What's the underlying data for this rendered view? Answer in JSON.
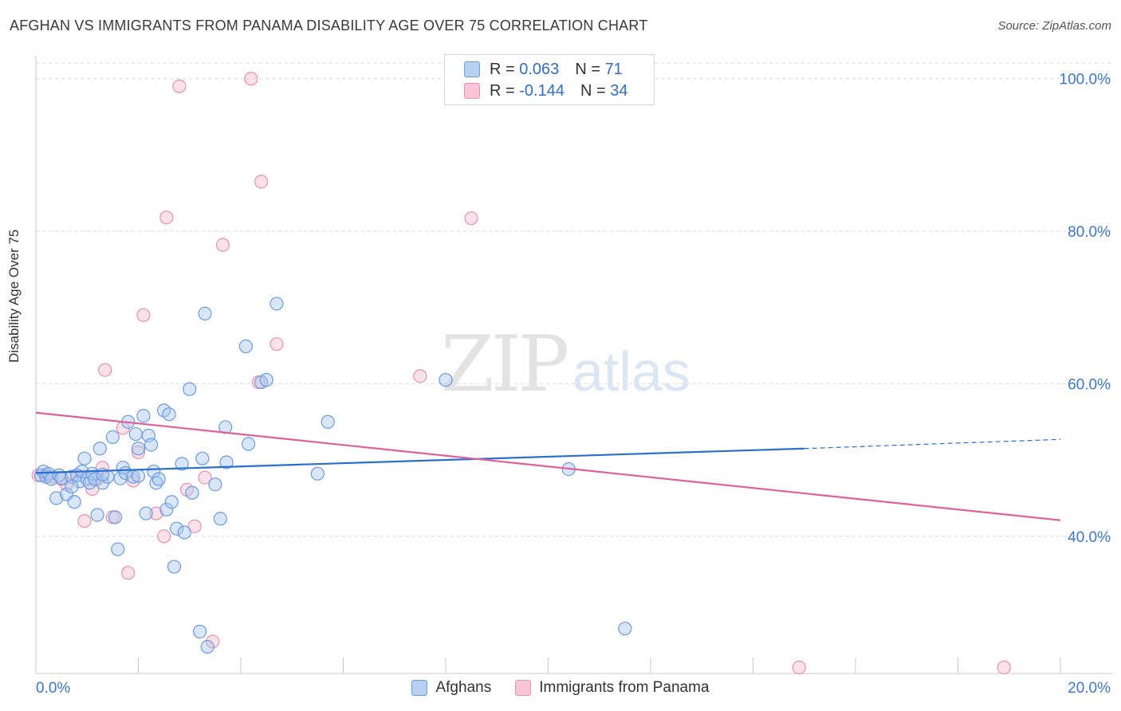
{
  "title": "AFGHAN VS IMMIGRANTS FROM PANAMA DISABILITY AGE OVER 75 CORRELATION CHART",
  "source": "Source: ZipAtlas.com",
  "watermark": {
    "zip": "ZIP",
    "atlas": "atlas"
  },
  "legend": {
    "rows": [
      {
        "r_label": "R =",
        "r_value": "0.063",
        "n_label": "N =",
        "n_value": "71"
      },
      {
        "r_label": "R =",
        "r_value": "-0.144",
        "n_label": "N =",
        "n_value": "34"
      }
    ]
  },
  "bottom_legend": {
    "afghans": "Afghans",
    "panama": "Immigrants from Panama"
  },
  "colors": {
    "afghan_fill": "#a9c8ef",
    "afghan_stroke": "#6b9be0",
    "afghan_line": "#2a6fd0",
    "panama_fill": "#f6bfd1",
    "panama_stroke": "#ea8fae",
    "panama_line": "#e0609a",
    "axis_text": "#3b78cf",
    "grid": "#d9d9d9"
  },
  "chart_data": {
    "type": "scatter",
    "title": "AFGHAN VS IMMIGRANTS FROM PANAMA DISABILITY AGE OVER 75 CORRELATION CHART",
    "xlabel": "",
    "ylabel": "Disability Age Over 75",
    "xlim": [
      0,
      20
    ],
    "ylim": [
      22,
      103
    ],
    "x_tick_labels": [
      "0.0%",
      "20.0%"
    ],
    "y_ticks": [
      40,
      60,
      80,
      100
    ],
    "y_tick_labels": [
      "40.0%",
      "60.0%",
      "80.0%",
      "100.0%"
    ],
    "grid": true,
    "legend_position": "top-center",
    "series": [
      {
        "name": "Afghans",
        "r": 0.063,
        "n": 71,
        "trend": {
          "x0": 0,
          "y0": 48.3,
          "x1": 15,
          "y1": 51.5,
          "dashed_to_x": 20,
          "dashed_to_y": 52.7
        },
        "points": [
          [
            0.1,
            48.0
          ],
          [
            0.15,
            48.5
          ],
          [
            0.2,
            47.8
          ],
          [
            0.25,
            48.2
          ],
          [
            0.3,
            47.5
          ],
          [
            0.4,
            45.0
          ],
          [
            0.45,
            48.0
          ],
          [
            0.5,
            47.6
          ],
          [
            0.6,
            45.5
          ],
          [
            0.7,
            47.8
          ],
          [
            0.75,
            44.5
          ],
          [
            0.8,
            48.0
          ],
          [
            0.85,
            47.2
          ],
          [
            0.9,
            48.5
          ],
          [
            0.95,
            50.2
          ],
          [
            1.0,
            47.5
          ],
          [
            1.05,
            47.0
          ],
          [
            1.1,
            48.2
          ],
          [
            1.15,
            47.5
          ],
          [
            1.2,
            42.8
          ],
          [
            1.25,
            51.5
          ],
          [
            1.3,
            47.0
          ],
          [
            1.4,
            47.8
          ],
          [
            1.5,
            53.0
          ],
          [
            1.55,
            42.5
          ],
          [
            1.6,
            38.3
          ],
          [
            1.65,
            47.6
          ],
          [
            1.7,
            49.0
          ],
          [
            1.75,
            48.3
          ],
          [
            1.8,
            55.0
          ],
          [
            1.9,
            47.8
          ],
          [
            1.95,
            53.4
          ],
          [
            2.0,
            51.5
          ],
          [
            2.1,
            55.8
          ],
          [
            2.15,
            43.0
          ],
          [
            2.2,
            53.2
          ],
          [
            2.25,
            52.0
          ],
          [
            2.3,
            48.5
          ],
          [
            2.35,
            47.0
          ],
          [
            2.4,
            47.5
          ],
          [
            2.5,
            56.5
          ],
          [
            2.55,
            43.5
          ],
          [
            2.6,
            56.0
          ],
          [
            2.65,
            44.5
          ],
          [
            2.7,
            36.0
          ],
          [
            2.75,
            41.0
          ],
          [
            2.85,
            49.5
          ],
          [
            2.9,
            40.5
          ],
          [
            3.0,
            59.3
          ],
          [
            3.05,
            45.7
          ],
          [
            3.2,
            27.5
          ],
          [
            3.25,
            50.2
          ],
          [
            3.3,
            69.2
          ],
          [
            3.35,
            25.5
          ],
          [
            3.5,
            46.8
          ],
          [
            3.6,
            42.3
          ],
          [
            3.7,
            54.3
          ],
          [
            3.72,
            49.7
          ],
          [
            4.1,
            64.9
          ],
          [
            4.15,
            52.1
          ],
          [
            4.4,
            60.2
          ],
          [
            4.5,
            60.5
          ],
          [
            4.7,
            70.5
          ],
          [
            5.5,
            48.2
          ],
          [
            5.7,
            55.0
          ],
          [
            8.0,
            60.5
          ],
          [
            10.4,
            48.8
          ],
          [
            11.5,
            27.9
          ],
          [
            2.0,
            47.9
          ],
          [
            1.3,
            48.1
          ],
          [
            0.7,
            46.5
          ]
        ]
      },
      {
        "name": "Immigrants from Panama",
        "r": -0.144,
        "n": 34,
        "trend": {
          "x0": 0,
          "y0": 56.2,
          "x1": 20,
          "y1": 42.1
        },
        "points": [
          [
            0.05,
            48.0
          ],
          [
            0.2,
            48.1
          ],
          [
            0.3,
            47.8
          ],
          [
            0.5,
            47.5
          ],
          [
            0.6,
            46.8
          ],
          [
            0.95,
            42.0
          ],
          [
            1.1,
            46.2
          ],
          [
            1.3,
            49.0
          ],
          [
            1.35,
            61.8
          ],
          [
            1.5,
            42.5
          ],
          [
            1.7,
            54.2
          ],
          [
            1.8,
            35.2
          ],
          [
            1.9,
            47.3
          ],
          [
            2.0,
            51.0
          ],
          [
            2.1,
            69.0
          ],
          [
            2.35,
            43.0
          ],
          [
            2.5,
            40.0
          ],
          [
            2.55,
            81.8
          ],
          [
            2.8,
            99.0
          ],
          [
            2.95,
            46.1
          ],
          [
            3.1,
            41.3
          ],
          [
            3.3,
            47.7
          ],
          [
            3.45,
            26.2
          ],
          [
            3.65,
            78.2
          ],
          [
            4.2,
            100.0
          ],
          [
            4.35,
            60.2
          ],
          [
            4.4,
            86.5
          ],
          [
            4.7,
            65.2
          ],
          [
            7.5,
            61.0
          ],
          [
            8.5,
            81.7
          ],
          [
            14.9,
            22.8
          ],
          [
            18.9,
            22.8
          ],
          [
            1.2,
            47.5
          ],
          [
            0.8,
            48.0
          ]
        ]
      }
    ]
  }
}
